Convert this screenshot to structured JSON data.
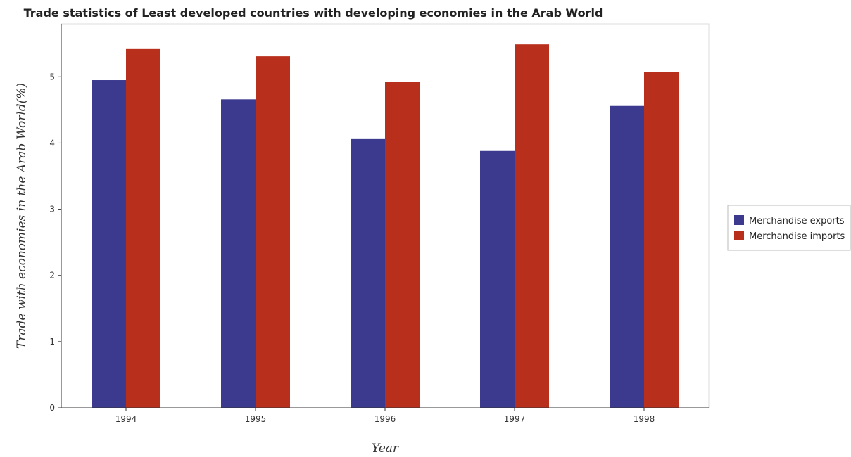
{
  "chart_data": {
    "type": "bar",
    "title": "Trade statistics of Least developed countries with developing economies in the Arab World",
    "xlabel": "Year",
    "ylabel": "Trade with economies in the Arab World(%)",
    "categories": [
      "1994",
      "1995",
      "1996",
      "1997",
      "1998"
    ],
    "series": [
      {
        "name": "Merchandise exports",
        "color": "#3b3a8f",
        "values": [
          4.95,
          4.66,
          4.07,
          3.88,
          4.56
        ]
      },
      {
        "name": "Merchandise imports",
        "color": "#b8301c",
        "values": [
          5.43,
          5.31,
          4.92,
          5.49,
          5.07
        ]
      }
    ],
    "ylim": [
      0,
      5.8
    ],
    "yticks": [
      0,
      1,
      2,
      3,
      4,
      5
    ],
    "grid": false,
    "legend_position": "right"
  }
}
